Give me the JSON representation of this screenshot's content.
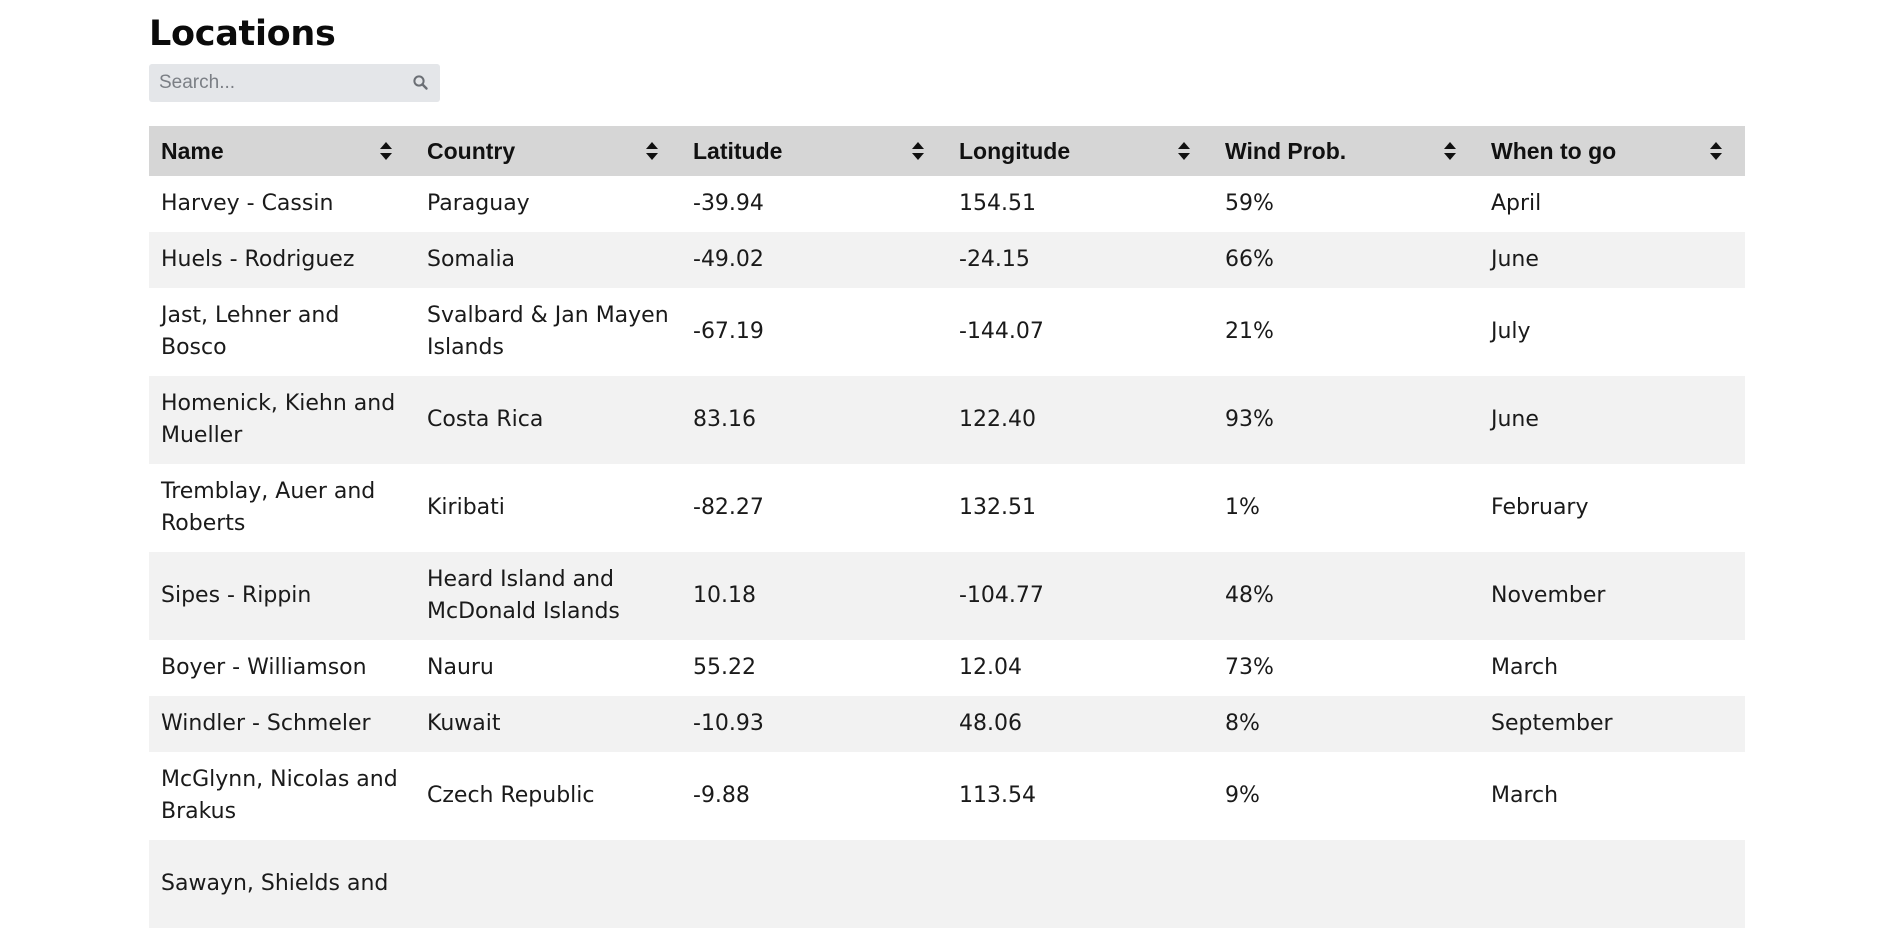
{
  "page": {
    "title": "Locations"
  },
  "search": {
    "placeholder": "Search...",
    "icon": "search-icon"
  },
  "table": {
    "columns": [
      {
        "label": "Name",
        "sort_icon": "sort-icon"
      },
      {
        "label": "Country",
        "sort_icon": "sort-icon"
      },
      {
        "label": "Latitude",
        "sort_icon": "sort-icon"
      },
      {
        "label": "Longitude",
        "sort_icon": "sort-icon"
      },
      {
        "label": "Wind Prob.",
        "sort_icon": "sort-icon"
      },
      {
        "label": "When to go",
        "sort_icon": "sort-icon"
      }
    ],
    "rows": [
      {
        "name": "Harvey - Cassin",
        "country": "Paraguay",
        "latitude": "-39.94",
        "longitude": "154.51",
        "wind": "59%",
        "when": "April"
      },
      {
        "name": "Huels - Rodriguez",
        "country": "Somalia",
        "latitude": "-49.02",
        "longitude": "-24.15",
        "wind": "66%",
        "when": "June"
      },
      {
        "name": "Jast, Lehner and Bosco",
        "country": "Svalbard & Jan Mayen Islands",
        "latitude": "-67.19",
        "longitude": "-144.07",
        "wind": "21%",
        "when": "July"
      },
      {
        "name": "Homenick, Kiehn and Mueller",
        "country": "Costa Rica",
        "latitude": "83.16",
        "longitude": "122.40",
        "wind": "93%",
        "when": "June"
      },
      {
        "name": "Tremblay, Auer and Roberts",
        "country": "Kiribati",
        "latitude": "-82.27",
        "longitude": "132.51",
        "wind": "1%",
        "when": "February"
      },
      {
        "name": "Sipes - Rippin",
        "country": "Heard Island and McDonald Islands",
        "latitude": "10.18",
        "longitude": "-104.77",
        "wind": "48%",
        "when": "November"
      },
      {
        "name": "Boyer - Williamson",
        "country": "Nauru",
        "latitude": "55.22",
        "longitude": "12.04",
        "wind": "73%",
        "when": "March"
      },
      {
        "name": "Windler - Schmeler",
        "country": "Kuwait",
        "latitude": "-10.93",
        "longitude": "48.06",
        "wind": "8%",
        "when": "September"
      },
      {
        "name": "McGlynn, Nicolas and Brakus",
        "country": "Czech Republic",
        "latitude": "-9.88",
        "longitude": "113.54",
        "wind": "9%",
        "when": "March"
      },
      {
        "name": "Sawayn, Shields and",
        "country": "",
        "latitude": "",
        "longitude": "",
        "wind": "",
        "when": ""
      }
    ]
  }
}
